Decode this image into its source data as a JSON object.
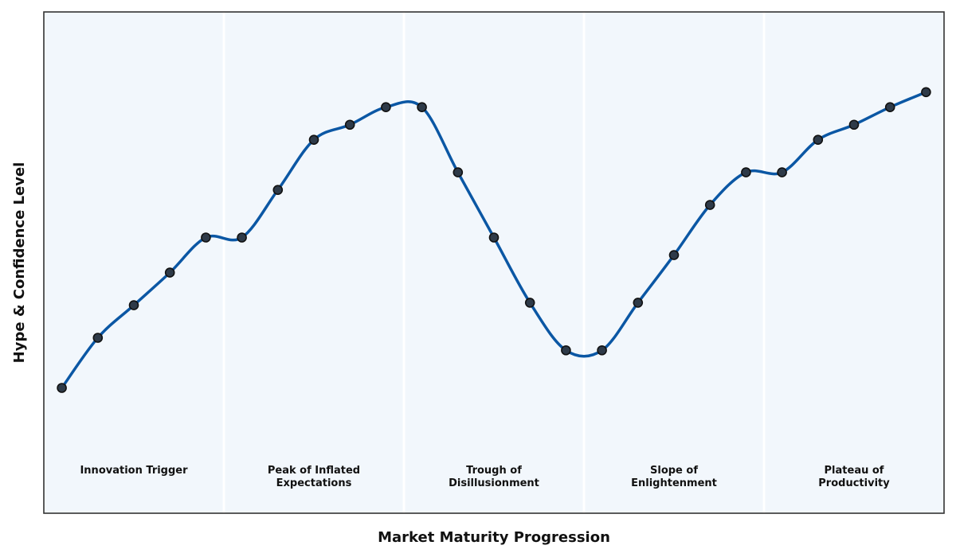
{
  "chart_data": {
    "type": "line",
    "title": "",
    "xlabel": "Market Maturity Progression",
    "ylabel": "Hype & Confidence Level",
    "xlim": [
      -0.5,
      24.5
    ],
    "ylim": [
      0,
      100
    ],
    "grid": false,
    "phases": [
      {
        "label_lines": [
          "Innovation Trigger"
        ],
        "start": -0.5,
        "end": 4.5
      },
      {
        "label_lines": [
          "Peak of Inflated",
          "Expectations"
        ],
        "start": 4.5,
        "end": 9.5
      },
      {
        "label_lines": [
          "Trough of",
          "Disillusionment"
        ],
        "start": 9.5,
        "end": 14.5
      },
      {
        "label_lines": [
          "Slope of",
          "Enlightenment"
        ],
        "start": 14.5,
        "end": 19.5
      },
      {
        "label_lines": [
          "Plateau of",
          "Productivity"
        ],
        "start": 19.5,
        "end": 24.5
      }
    ],
    "series": [
      {
        "x": [
          0,
          1,
          2,
          3,
          4,
          5,
          6,
          7,
          8,
          9,
          10,
          11,
          12,
          13,
          14,
          15,
          16,
          17,
          18,
          19,
          20,
          21,
          22,
          23,
          24
        ],
        "values": [
          25,
          35,
          41.5,
          48,
          55,
          55,
          64.5,
          74.5,
          77.5,
          81,
          81,
          68,
          55,
          42,
          32.5,
          32.5,
          42,
          51.5,
          61.5,
          68,
          68,
          74.5,
          77.5,
          81,
          84
        ],
        "color": "#0b57a4"
      }
    ]
  },
  "colors": {
    "plot_background": "#f2f7fc",
    "line": "#0b57a4",
    "marker_fill": "#2e3a48",
    "marker_edge": "#111111",
    "frame": "#333333",
    "divider": "#ffffff"
  }
}
